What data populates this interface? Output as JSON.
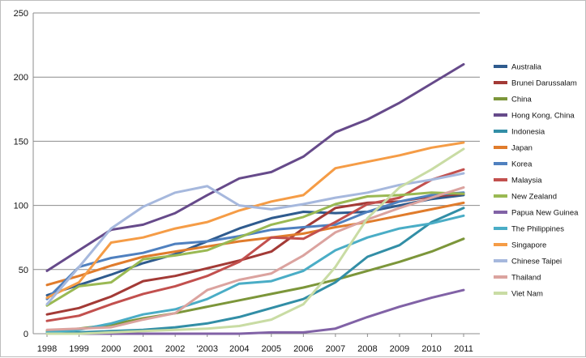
{
  "chart_data": {
    "type": "line",
    "title": "",
    "xlabel": "",
    "ylabel": "",
    "ylim": [
      0,
      250
    ],
    "yticks": [
      "0",
      "50",
      "100",
      "150",
      "200",
      "250"
    ],
    "x": [
      "1998",
      "1999",
      "2000",
      "2001",
      "2002",
      "2003",
      "2004",
      "2005",
      "2006",
      "2007",
      "2008",
      "2009",
      "2010",
      "2011"
    ],
    "x_tick_labels": [
      "1998",
      "1999",
      "2000",
      "2001",
      "2002",
      "'2003",
      "2004",
      "2005",
      "2006",
      "2007",
      "2008",
      "2009",
      "2010",
      "2011"
    ],
    "grid": "horizontal",
    "legend_position": "right",
    "series": [
      {
        "name": "Australia",
        "color": "#2f5b8e",
        "values": [
          30,
          38,
          46,
          55,
          62,
          72,
          82,
          90,
          95,
          94,
          95,
          100,
          105,
          108
        ]
      },
      {
        "name": "Brunei Darussalam",
        "color": "#a33a36",
        "values": [
          15,
          20,
          29,
          41,
          45,
          51,
          57,
          64,
          82,
          98,
          102,
          103,
          107,
          109
        ]
      },
      {
        "name": "China",
        "color": "#7c963a",
        "values": [
          2,
          4,
          7,
          12,
          16,
          21,
          26,
          31,
          36,
          42,
          49,
          56,
          64,
          74
        ]
      },
      {
        "name": "Hong Kong, China",
        "color": "#664a8a",
        "values": [
          49,
          65,
          81,
          85,
          94,
          108,
          121,
          126,
          138,
          157,
          167,
          180,
          195,
          210
        ]
      },
      {
        "name": "Indonesia",
        "color": "#328ea6",
        "values": [
          0,
          1,
          2,
          3,
          5,
          8,
          13,
          20,
          27,
          40,
          60,
          69,
          87,
          98
        ]
      },
      {
        "name": "Japan",
        "color": "#e07c2c",
        "values": [
          38,
          45,
          53,
          60,
          64,
          68,
          72,
          75,
          78,
          83,
          87,
          92,
          97,
          102
        ]
      },
      {
        "name": "Korea",
        "color": "#4f80bf",
        "values": [
          27,
          52,
          59,
          63,
          70,
          72,
          76,
          81,
          83,
          85,
          95,
          103,
          108,
          110
        ]
      },
      {
        "name": "Malaysia",
        "color": "#c2504e",
        "values": [
          10,
          14,
          23,
          31,
          37,
          45,
          56,
          75,
          74,
          87,
          101,
          106,
          120,
          128
        ]
      },
      {
        "name": "New Zealand",
        "color": "#9ab953",
        "values": [
          22,
          37,
          40,
          58,
          61,
          65,
          75,
          85,
          91,
          101,
          107,
          108,
          110,
          109
        ]
      },
      {
        "name": "Papua New Guinea",
        "color": "#8162a6",
        "values": [
          0,
          0,
          0,
          0,
          0,
          0,
          0,
          1,
          1,
          4,
          13,
          21,
          28,
          34
        ]
      },
      {
        "name": "The Philippines",
        "color": "#4aadc6",
        "values": [
          1,
          3,
          8,
          15,
          19,
          27,
          39,
          41,
          49,
          65,
          75,
          82,
          86,
          92
        ]
      },
      {
        "name": "Singapore",
        "color": "#f59c46",
        "values": [
          28,
          40,
          71,
          75,
          82,
          87,
          96,
          103,
          108,
          129,
          134,
          139,
          145,
          149
        ]
      },
      {
        "name": "Chinese Taipei",
        "color": "#a6b8dd",
        "values": [
          23,
          52,
          82,
          99,
          110,
          115,
          100,
          97,
          101,
          106,
          110,
          116,
          120,
          125
        ]
      },
      {
        "name": "Thailand",
        "color": "#dba39f",
        "values": [
          3,
          4,
          5,
          11,
          16,
          34,
          42,
          47,
          61,
          79,
          89,
          98,
          106,
          114
        ]
      },
      {
        "name": "Viet Nam",
        "color": "#c9dca4",
        "values": [
          0,
          0,
          1,
          2,
          3,
          4,
          6,
          11,
          23,
          52,
          90,
          114,
          128,
          144
        ]
      }
    ]
  }
}
